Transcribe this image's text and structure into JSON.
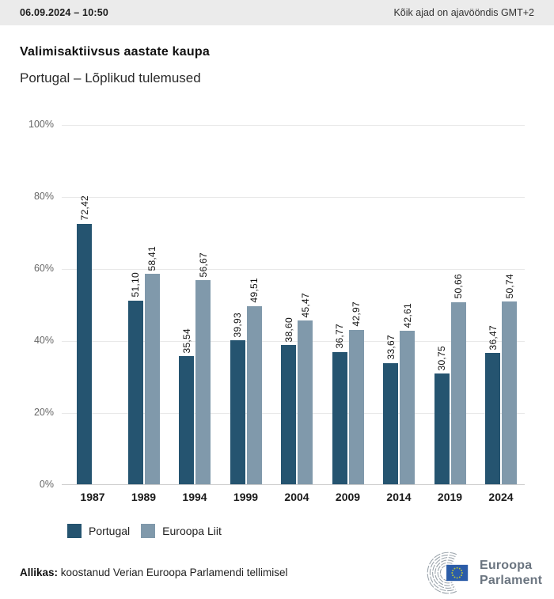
{
  "header": {
    "timestamp": "06.09.2024 – 10:50",
    "timezone_note": "Kõik ajad on ajavööndis GMT+2"
  },
  "title": "Valimisaktiivsus aastate kaupa",
  "subtitle": "Portugal – Lõplikud tulemused",
  "chart_data": {
    "type": "bar",
    "categories": [
      "1987",
      "1989",
      "1994",
      "1999",
      "2004",
      "2009",
      "2014",
      "2019",
      "2024"
    ],
    "series": [
      {
        "name": "Portugal",
        "color": "#255470",
        "values": [
          72.42,
          51.1,
          35.54,
          39.93,
          38.6,
          36.77,
          33.67,
          30.75,
          36.47
        ],
        "labels": [
          "72,42",
          "51,10",
          "35,54",
          "39,93",
          "38,60",
          "36,77",
          "33,67",
          "30,75",
          "36,47"
        ]
      },
      {
        "name": "Euroopa Liit",
        "color": "#8099ab",
        "values": [
          null,
          58.41,
          56.67,
          49.51,
          45.47,
          42.97,
          42.61,
          50.66,
          50.74
        ],
        "labels": [
          null,
          "58,41",
          "56,67",
          "49,51",
          "45,47",
          "42,97",
          "42,61",
          "50,66",
          "50,74"
        ]
      }
    ],
    "ylim": [
      0,
      100
    ],
    "yticks": [
      0,
      20,
      40,
      60,
      80,
      100
    ],
    "ytick_labels": [
      "0%",
      "20%",
      "40%",
      "60%",
      "80%",
      "100%"
    ],
    "grid": true,
    "legend_position": "bottom",
    "value_label_rotation": 90
  },
  "legend": {
    "items": [
      {
        "label": "Portugal",
        "color": "#255470"
      },
      {
        "label": "Euroopa Liit",
        "color": "#8099ab"
      }
    ]
  },
  "footer": {
    "source_label": "Allikas:",
    "source_text": "koostanud Verian Euroopa Parlamendi tellimisel"
  },
  "logo": {
    "line1": "Euroopa",
    "line2": "Parlament",
    "flag_color": "#2b5ca8",
    "star_color": "#b9c43c",
    "arc_color": "#9aa3ab"
  }
}
